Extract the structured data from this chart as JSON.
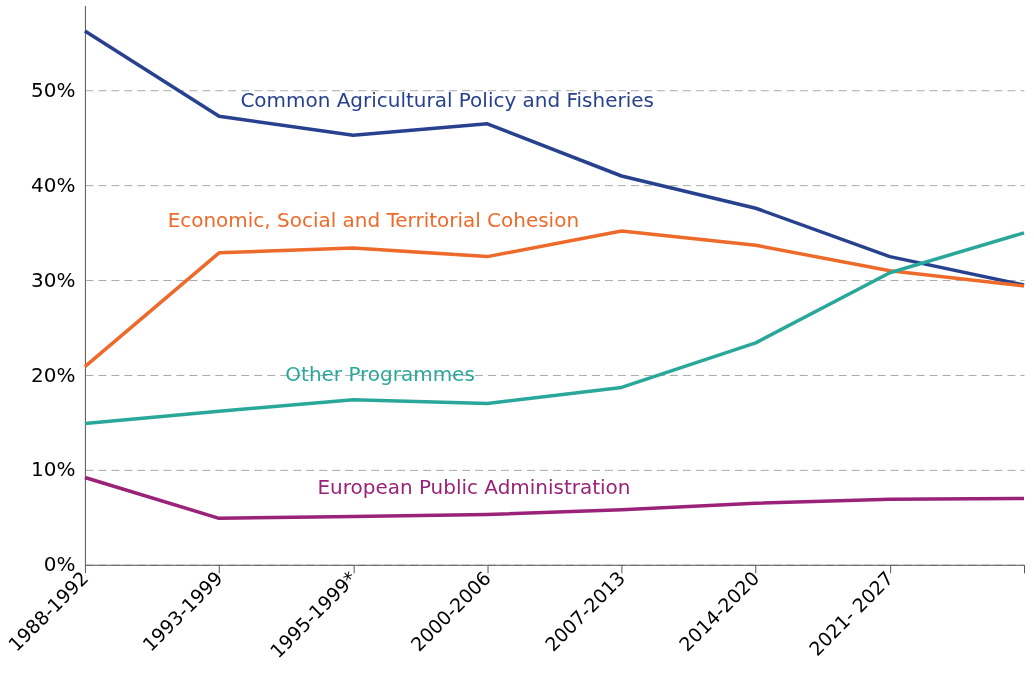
{
  "chart_data": {
    "type": "line",
    "ylim": [
      0,
      59
    ],
    "categories": [
      "1988-1992",
      "1993-1999",
      "1995-1999*",
      "2000-2006",
      "2007-2013",
      "2014-2020",
      "2021- 2027",
      null
    ],
    "yticks": [
      {
        "value": 0,
        "label": "0%"
      },
      {
        "value": 10,
        "label": "10%"
      },
      {
        "value": 20,
        "label": "20%"
      },
      {
        "value": 30,
        "label": "30%"
      },
      {
        "value": 40,
        "label": "40%"
      },
      {
        "value": 50,
        "label": "50%"
      }
    ],
    "grid": "y",
    "legend": false,
    "marker": "none",
    "line_style": "solid",
    "series": [
      {
        "name": "Common Agricultural Policy and Fisheries",
        "color": "#27418f",
        "values": [
          56.3,
          47.3,
          45.3,
          46.5,
          41.0,
          37.6,
          32.5,
          29.5
        ]
      },
      {
        "name": "Economic, Social and Territorial Cohesion",
        "color": "#ee6a2b",
        "values": [
          20.9,
          32.9,
          33.4,
          32.5,
          35.2,
          33.7,
          31.0,
          29.4
        ]
      },
      {
        "name": "Other Programmes",
        "color": "#2aa79b",
        "values": [
          14.9,
          16.2,
          17.4,
          17.0,
          18.7,
          23.4,
          30.8,
          35.0
        ]
      },
      {
        "name": "European Public Administration",
        "color": "#9a2379",
        "values": [
          9.2,
          4.9,
          5.1,
          5.3,
          5.8,
          6.5,
          6.9,
          7.0
        ]
      }
    ]
  }
}
